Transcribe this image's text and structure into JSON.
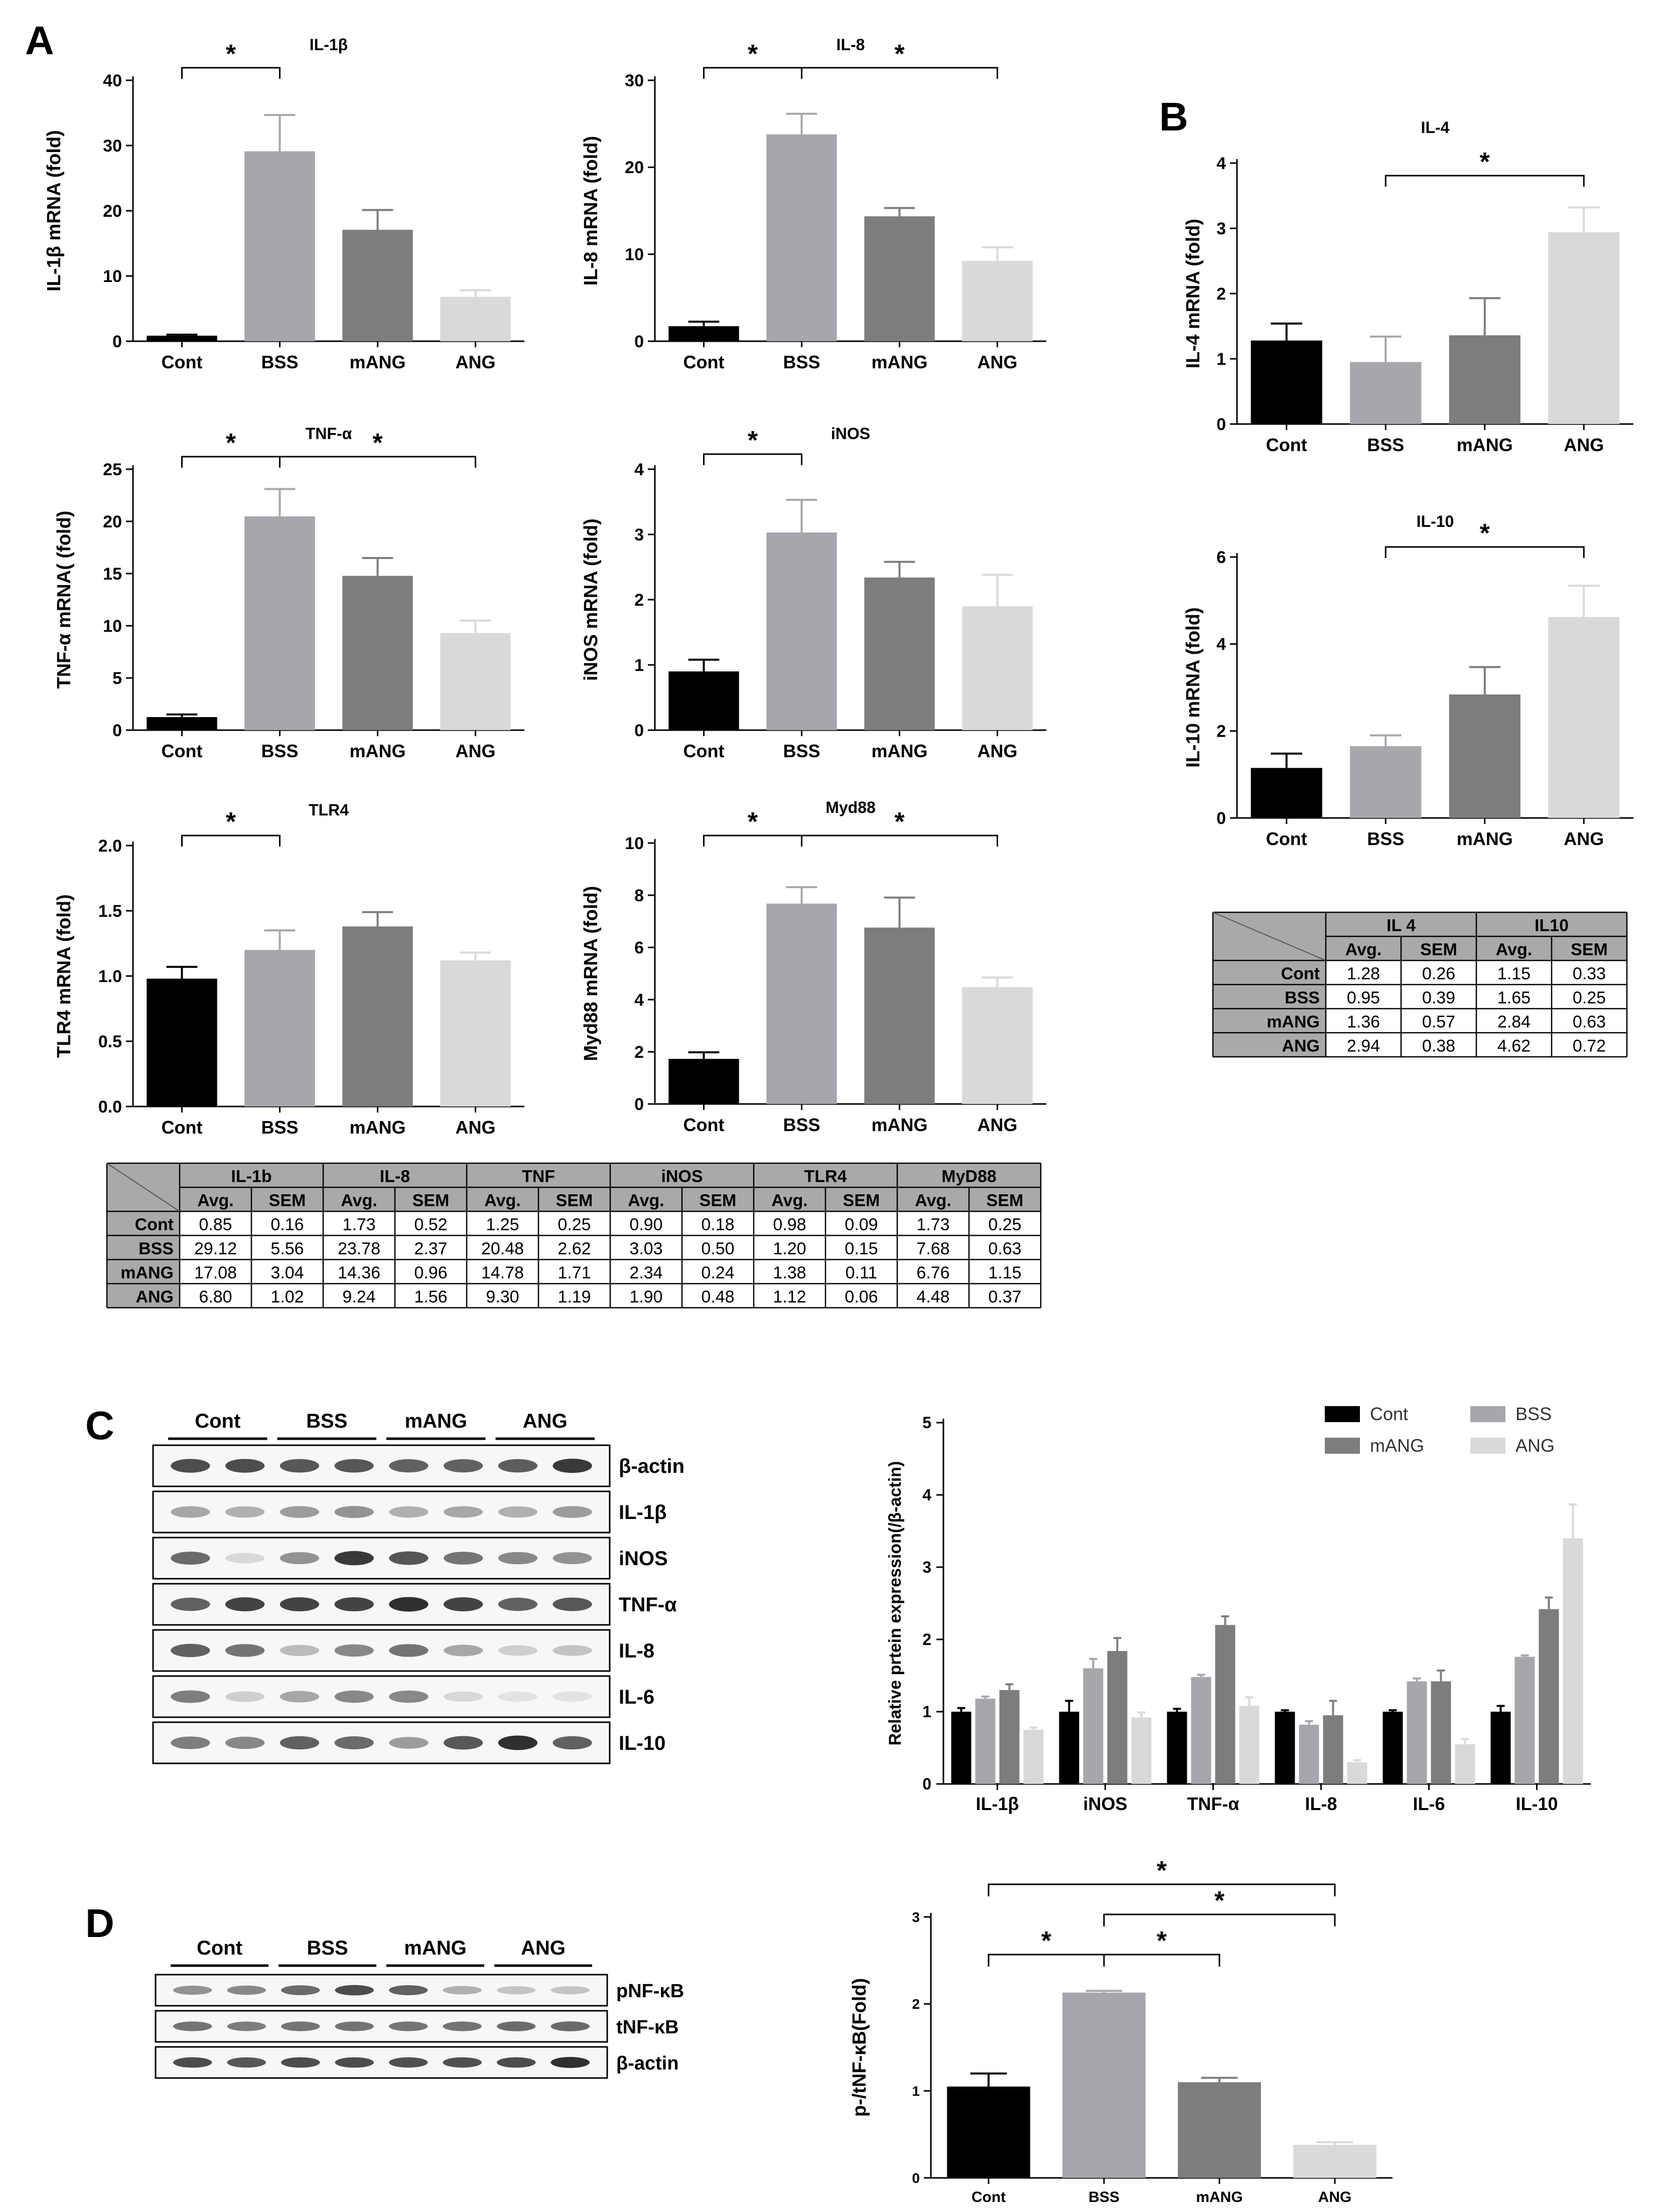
{
  "panel_labels": [
    "A",
    "B",
    "C",
    "D"
  ],
  "colors": {
    "Cont": "#000000",
    "BSS": "#a7a6ad",
    "mANG": "#7d7d7d",
    "ANG": "#d9d9d9"
  },
  "groups": [
    "Cont",
    "BSS",
    "mANG",
    "ANG"
  ],
  "chart_data": [
    {
      "id": "il1b",
      "type": "bar",
      "title": "IL-1β",
      "ylabel": "IL-1β mRNA (fold)",
      "categories": [
        "Cont",
        "BSS",
        "mANG",
        "ANG"
      ],
      "values": [
        0.85,
        29.12,
        17.08,
        6.8
      ],
      "errors": [
        0.16,
        5.56,
        3.04,
        1.02
      ],
      "ylim": [
        0,
        40
      ],
      "yticks": [
        0,
        10,
        20,
        30,
        40
      ],
      "significance": [
        {
          "from": "Cont",
          "to": "BSS",
          "label": "*"
        }
      ]
    },
    {
      "id": "il8",
      "type": "bar",
      "title": "IL-8",
      "ylabel": "IL-8 mRNA (fold)",
      "categories": [
        "Cont",
        "BSS",
        "mANG",
        "ANG"
      ],
      "values": [
        1.73,
        23.78,
        14.36,
        9.24
      ],
      "errors": [
        0.52,
        2.37,
        0.96,
        1.56
      ],
      "ylim": [
        0,
        30
      ],
      "yticks": [
        0,
        10,
        20,
        30
      ],
      "significance": [
        {
          "from": "Cont",
          "to": "BSS",
          "label": "*"
        },
        {
          "from": "BSS",
          "to": "ANG",
          "label": "*"
        }
      ]
    },
    {
      "id": "tnf",
      "type": "bar",
      "title": "TNF-α",
      "ylabel": "TNF-α mRNA( (fold)",
      "categories": [
        "Cont",
        "BSS",
        "mANG",
        "ANG"
      ],
      "values": [
        1.25,
        20.48,
        14.78,
        9.3
      ],
      "errors": [
        0.25,
        2.62,
        1.71,
        1.19
      ],
      "ylim": [
        0,
        25
      ],
      "yticks": [
        0,
        5,
        10,
        15,
        20,
        25
      ],
      "significance": [
        {
          "from": "Cont",
          "to": "BSS",
          "label": "*"
        },
        {
          "from": "BSS",
          "to": "ANG",
          "label": "*"
        }
      ]
    },
    {
      "id": "inos",
      "type": "bar",
      "title": "iNOS",
      "ylabel": "iNOS mRNA (fold)",
      "categories": [
        "Cont",
        "BSS",
        "mANG",
        "ANG"
      ],
      "values": [
        0.9,
        3.03,
        2.34,
        1.9
      ],
      "errors": [
        0.18,
        0.5,
        0.24,
        0.48
      ],
      "ylim": [
        0,
        4
      ],
      "yticks": [
        0,
        1,
        2,
        3,
        4
      ],
      "significance": [
        {
          "from": "Cont",
          "to": "BSS",
          "label": "*"
        }
      ]
    },
    {
      "id": "tlr4",
      "type": "bar",
      "title": "TLR4",
      "ylabel": "TLR4 mRNA (fold)",
      "categories": [
        "Cont",
        "BSS",
        "mANG",
        "ANG"
      ],
      "values": [
        0.98,
        1.2,
        1.38,
        1.12
      ],
      "errors": [
        0.09,
        0.15,
        0.11,
        0.06
      ],
      "ylim": [
        0,
        2.0
      ],
      "yticks": [
        "0.0",
        "0.5",
        "1.0",
        "1.5",
        "2.0"
      ],
      "significance": [
        {
          "from": "Cont",
          "to": "BSS",
          "label": "*"
        }
      ]
    },
    {
      "id": "myd88",
      "type": "bar",
      "title": "Myd88",
      "ylabel": "Myd88 mRNA (fold)",
      "categories": [
        "Cont",
        "BSS",
        "mANG",
        "ANG"
      ],
      "values": [
        1.73,
        7.68,
        6.76,
        4.48
      ],
      "errors": [
        0.25,
        0.63,
        1.15,
        0.37
      ],
      "ylim": [
        0,
        10
      ],
      "yticks": [
        0,
        2,
        4,
        6,
        8,
        10
      ],
      "significance": [
        {
          "from": "Cont",
          "to": "BSS",
          "label": "*"
        },
        {
          "from": "BSS",
          "to": "ANG",
          "label": "*"
        }
      ]
    },
    {
      "id": "il4",
      "type": "bar",
      "title": "IL-4",
      "ylabel": "IL-4 mRNA (fold)",
      "categories": [
        "Cont",
        "BSS",
        "mANG",
        "ANG"
      ],
      "values": [
        1.28,
        0.95,
        1.36,
        2.94
      ],
      "errors": [
        0.26,
        0.39,
        0.57,
        0.38
      ],
      "ylim": [
        0,
        4
      ],
      "yticks": [
        0,
        1,
        2,
        3,
        4
      ],
      "significance": [
        {
          "from": "BSS",
          "to": "ANG",
          "label": "*"
        }
      ]
    },
    {
      "id": "il10",
      "type": "bar",
      "title": "IL-10",
      "ylabel": "IL-10 mRNA (fold)",
      "categories": [
        "Cont",
        "BSS",
        "mANG",
        "ANG"
      ],
      "values": [
        1.15,
        1.65,
        2.84,
        4.62
      ],
      "errors": [
        0.33,
        0.25,
        0.63,
        0.72
      ],
      "ylim": [
        0,
        6
      ],
      "yticks": [
        0,
        2,
        4,
        6
      ],
      "significance": [
        {
          "from": "BSS",
          "to": "ANG",
          "label": "*"
        }
      ]
    },
    {
      "id": "protein",
      "type": "bar",
      "title": "",
      "ylabel": "Relative prtein expression(/β-actin)",
      "categories": [
        "IL-1β",
        "iNOS",
        "TNF-α",
        "IL-8",
        "IL-6",
        "IL-10"
      ],
      "ylim": [
        0,
        5
      ],
      "yticks": [
        0,
        1,
        2,
        3,
        4,
        5
      ],
      "legend": "top-right",
      "series": [
        {
          "name": "Cont",
          "values": [
            1.0,
            1.0,
            1.0,
            1.0,
            1.0,
            1.0
          ],
          "errors": [
            0.05,
            0.15,
            0.04,
            0.02,
            0.02,
            0.08
          ]
        },
        {
          "name": "BSS",
          "values": [
            1.18,
            1.6,
            1.48,
            0.82,
            1.42,
            1.76
          ],
          "errors": [
            0.03,
            0.13,
            0.03,
            0.05,
            0.04,
            0.02
          ]
        },
        {
          "name": "mANG",
          "values": [
            1.3,
            1.84,
            2.2,
            0.95,
            1.42,
            2.42
          ],
          "errors": [
            0.08,
            0.18,
            0.12,
            0.2,
            0.15,
            0.16
          ]
        },
        {
          "name": "ANG",
          "values": [
            0.75,
            0.92,
            1.08,
            0.3,
            0.55,
            3.4
          ],
          "errors": [
            0.03,
            0.07,
            0.12,
            0.03,
            0.07,
            0.47
          ]
        }
      ]
    },
    {
      "id": "nfkb",
      "type": "bar",
      "title": "",
      "ylabel": "p-/tNF-κB(Fold)",
      "categories": [
        "Cont",
        "BSS",
        "mANG",
        "ANG"
      ],
      "values": [
        1.05,
        2.13,
        1.1,
        0.38
      ],
      "errors": [
        0.15,
        0.02,
        0.05,
        0.03
      ],
      "ylim": [
        0,
        3
      ],
      "yticks": [
        0,
        1,
        2,
        3
      ],
      "significance": [
        {
          "from": "Cont",
          "to": "BSS",
          "label": "*"
        },
        {
          "from": "BSS",
          "to": "mANG",
          "label": "*"
        },
        {
          "from": "BSS",
          "to": "ANG",
          "label": "*"
        },
        {
          "from": "Cont",
          "to": "ANG",
          "label": "*"
        }
      ]
    },
    {
      "id": "tableA",
      "type": "table",
      "groups": [
        "IL-1b",
        "IL-8",
        "TNF",
        "iNOS",
        "TLR4",
        "MyD88"
      ],
      "subheaders": [
        "Avg.",
        "SEM"
      ],
      "rows": [
        {
          "label": "Cont",
          "cells": [
            "0.85",
            "0.16",
            "1.73",
            "0.52",
            "1.25",
            "0.25",
            "0.90",
            "0.18",
            "0.98",
            "0.09",
            "1.73",
            "0.25"
          ]
        },
        {
          "label": "BSS",
          "cells": [
            "29.12",
            "5.56",
            "23.78",
            "2.37",
            "20.48",
            "2.62",
            "3.03",
            "0.50",
            "1.20",
            "0.15",
            "7.68",
            "0.63"
          ]
        },
        {
          "label": "mANG",
          "cells": [
            "17.08",
            "3.04",
            "14.36",
            "0.96",
            "14.78",
            "1.71",
            "2.34",
            "0.24",
            "1.38",
            "0.11",
            "6.76",
            "1.15"
          ]
        },
        {
          "label": "ANG",
          "cells": [
            "6.80",
            "1.02",
            "9.24",
            "1.56",
            "9.30",
            "1.19",
            "1.90",
            "0.48",
            "1.12",
            "0.06",
            "4.48",
            "0.37"
          ]
        }
      ]
    },
    {
      "id": "tableB",
      "type": "table",
      "groups": [
        "IL 4",
        "IL10"
      ],
      "subheaders": [
        "Avg.",
        "SEM"
      ],
      "rows": [
        {
          "label": "Cont",
          "cells": [
            "1.28",
            "0.26",
            "1.15",
            "0.33"
          ]
        },
        {
          "label": "BSS",
          "cells": [
            "0.95",
            "0.39",
            "1.65",
            "0.25"
          ]
        },
        {
          "label": "mANG",
          "cells": [
            "1.36",
            "0.57",
            "2.84",
            "0.63"
          ]
        },
        {
          "label": "ANG",
          "cells": [
            "2.94",
            "0.38",
            "4.62",
            "0.72"
          ]
        }
      ]
    }
  ],
  "blots": {
    "C": {
      "lanes": [
        "Cont",
        "BSS",
        "mANG",
        "ANG"
      ],
      "rows": [
        {
          "label": "β-actin",
          "intensity": [
            0.8,
            0.8,
            0.75,
            0.75,
            0.7,
            0.7,
            0.72,
            0.9
          ]
        },
        {
          "label": "IL-1β",
          "intensity": [
            0.35,
            0.3,
            0.4,
            0.45,
            0.3,
            0.35,
            0.3,
            0.4
          ]
        },
        {
          "label": "iNOS",
          "intensity": [
            0.65,
            0.1,
            0.45,
            0.9,
            0.75,
            0.6,
            0.5,
            0.45
          ]
        },
        {
          "label": "TNF-α",
          "intensity": [
            0.7,
            0.85,
            0.85,
            0.85,
            0.95,
            0.85,
            0.7,
            0.75
          ]
        },
        {
          "label": "IL-8",
          "intensity": [
            0.7,
            0.6,
            0.25,
            0.5,
            0.6,
            0.35,
            0.15,
            0.2
          ]
        },
        {
          "label": "IL-6",
          "intensity": [
            0.55,
            0.15,
            0.35,
            0.5,
            0.5,
            0.1,
            0.05,
            0.05
          ]
        },
        {
          "label": "IL-10",
          "intensity": [
            0.55,
            0.5,
            0.7,
            0.65,
            0.4,
            0.75,
            0.95,
            0.7
          ]
        }
      ]
    },
    "D": {
      "lanes": [
        "Cont",
        "BSS",
        "mANG",
        "ANG"
      ],
      "rows": [
        {
          "label": "pNF-κB",
          "intensity": [
            0.45,
            0.5,
            0.65,
            0.8,
            0.7,
            0.3,
            0.2,
            0.2
          ]
        },
        {
          "label": "tNF-κB",
          "intensity": [
            0.6,
            0.55,
            0.6,
            0.6,
            0.6,
            0.6,
            0.65,
            0.65
          ]
        },
        {
          "label": "β-actin",
          "intensity": [
            0.8,
            0.75,
            0.8,
            0.8,
            0.78,
            0.78,
            0.8,
            0.95
          ]
        }
      ]
    }
  }
}
